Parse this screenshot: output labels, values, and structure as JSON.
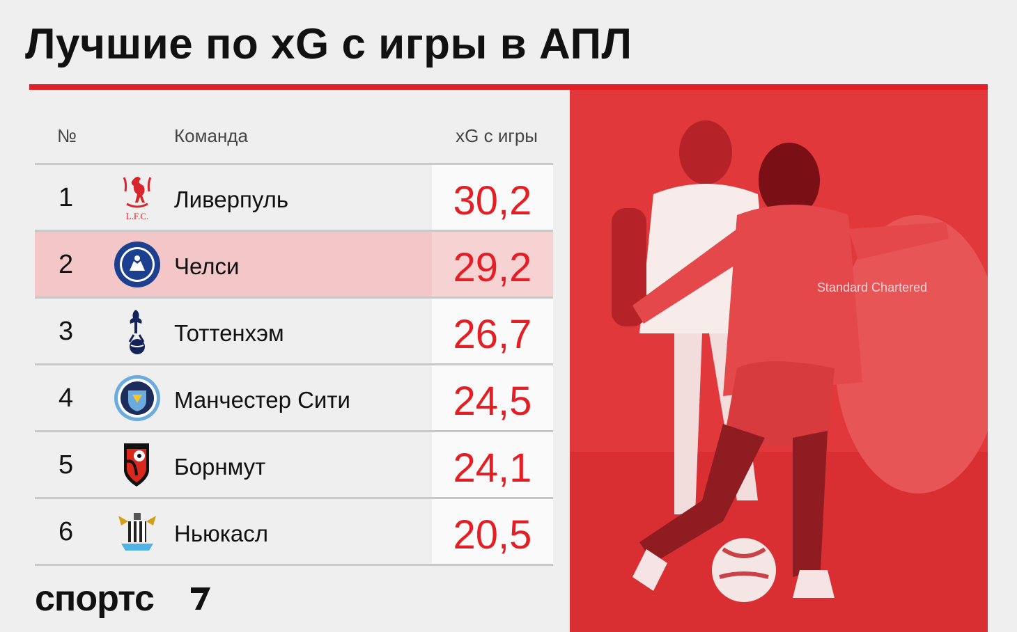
{
  "title": "Лучшие по xG с игры в АПЛ",
  "headers": {
    "num": "№",
    "team": "Команда",
    "xg": "xG с игры"
  },
  "rows": [
    {
      "num": "1",
      "team": "Ливерпуль",
      "xg": "30,2",
      "crest": "liverpool-crest",
      "crest_text": "L.F.C."
    },
    {
      "num": "2",
      "team": "Челси",
      "xg": "29,2",
      "crest": "chelsea-crest"
    },
    {
      "num": "3",
      "team": "Тоттенхэм",
      "xg": "26,7",
      "crest": "tottenham-crest"
    },
    {
      "num": "4",
      "team": "Манчестер Сити",
      "xg": "24,5",
      "crest": "man-city-crest"
    },
    {
      "num": "5",
      "team": "Борнмут",
      "xg": "24,1",
      "crest": "bournemouth-crest"
    },
    {
      "num": "6",
      "team": "Ньюкасл",
      "xg": "20,5",
      "crest": "newcastle-crest"
    }
  ],
  "brand": "спортс",
  "photo_shirt_text": "Standard Chartered",
  "colors": {
    "accent": "#e31e24",
    "highlight_row": "#f3c7c8",
    "photo_tint": "#e0383b"
  }
}
